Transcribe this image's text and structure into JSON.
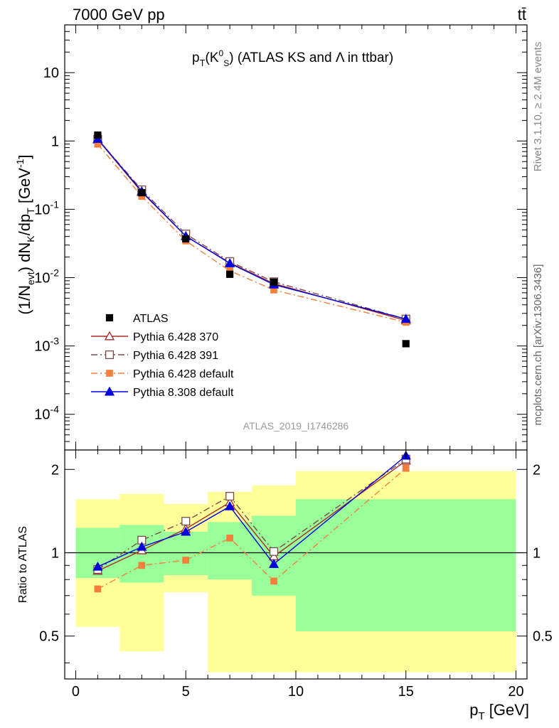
{
  "header": {
    "energy": "7000 GeV pp",
    "process": "tt̄"
  },
  "side_labels": {
    "rivet": "Rivet 3.1.10, ≥ 2.4M events",
    "mcplots": "mcplots.cern.ch [arXiv:1306.3436]"
  },
  "analysis_id": "ATLAS_2019_I1746286",
  "chart_data": [
    {
      "type": "line",
      "title": "p_T(K_S^0) (ATLAS KS and Λ in ttbar)",
      "ylabel": "(1/N_evt) dN_K/dp_T [GeV^-1]",
      "yscale": "log",
      "ylim": [
        3e-05,
        50
      ],
      "xlim": [
        -0.5,
        20.5
      ],
      "y_ticks": [
        {
          "v": 10,
          "label": "10"
        },
        {
          "v": 1,
          "label": "1"
        },
        {
          "v": 0.1,
          "label": "10^-1"
        },
        {
          "v": 0.01,
          "label": "10^-2"
        },
        {
          "v": 0.001,
          "label": "10^-3"
        },
        {
          "v": 0.0001,
          "label": "10^-4"
        }
      ],
      "x": [
        1,
        3,
        5,
        7,
        9,
        15
      ],
      "data": {
        "name": "ATLAS",
        "values": [
          1.22,
          0.175,
          0.037,
          0.0112,
          0.0086,
          0.00108
        ]
      },
      "series": [
        {
          "name": "Pythia 6.428 370",
          "color": "#a52a2a",
          "marker": "open-triangle",
          "dash": "solid",
          "values": [
            1.05,
            0.178,
            0.0405,
            0.0165,
            0.0082,
            0.00236
          ]
        },
        {
          "name": "Pythia 6.428 391",
          "color": "#7a4a4a",
          "marker": "open-square",
          "dash": "dashdot",
          "values": [
            1.06,
            0.193,
            0.0435,
            0.0172,
            0.0087,
            0.00248
          ]
        },
        {
          "name": "Pythia 6.428 default",
          "color": "#f47e3c",
          "marker": "filled-square",
          "dash": "dashdot",
          "values": [
            0.9,
            0.155,
            0.0345,
            0.0126,
            0.0066,
            0.00222
          ]
        },
        {
          "name": "Pythia 8.308 default",
          "color": "#0000dd",
          "marker": "filled-triangle",
          "dash": "solid",
          "values": [
            1.07,
            0.183,
            0.0405,
            0.0162,
            0.0079,
            0.00248
          ]
        }
      ]
    },
    {
      "type": "line",
      "ylabel": "Ratio to ATLAS",
      "xlabel": "p_T [GeV]",
      "yscale": "log",
      "ylim": [
        0.35,
        2.35
      ],
      "xlim": [
        -0.5,
        20.5
      ],
      "x_ticks": [
        0,
        5,
        10,
        15,
        20
      ],
      "y_ticks": [
        {
          "v": 0.5,
          "label": "0.5"
        },
        {
          "v": 1,
          "label": "1"
        },
        {
          "v": 2,
          "label": "2"
        }
      ],
      "bin_edges": [
        0,
        2,
        4,
        6,
        8,
        10,
        20
      ],
      "band_inner": {
        "color": "#99ff99",
        "lo": [
          0.81,
          0.78,
          0.83,
          0.8,
          0.7,
          0.52
        ],
        "hi": [
          1.23,
          1.26,
          1.19,
          1.29,
          1.36,
          1.56
        ]
      },
      "band_outer": {
        "color": "#ffff99",
        "lo": [
          0.54,
          0.44,
          0.72,
          0.37,
          0.37,
          0.37
        ],
        "hi": [
          1.56,
          1.63,
          1.5,
          1.66,
          1.75,
          1.97
        ]
      },
      "x": [
        1,
        3,
        5,
        7,
        9,
        15
      ],
      "series": [
        {
          "name": "Pythia 6.428 370",
          "values": [
            0.86,
            1.02,
            1.22,
            1.52,
            0.97,
            2.15
          ]
        },
        {
          "name": "Pythia 6.428 391",
          "values": [
            0.87,
            1.11,
            1.3,
            1.6,
            1.01,
            2.18
          ]
        },
        {
          "name": "Pythia 6.428 default",
          "values": [
            0.74,
            0.9,
            0.94,
            1.13,
            0.79,
            2.02
          ]
        },
        {
          "name": "Pythia 8.308 default",
          "values": [
            0.89,
            1.05,
            1.19,
            1.47,
            0.91,
            2.24
          ]
        }
      ]
    }
  ]
}
